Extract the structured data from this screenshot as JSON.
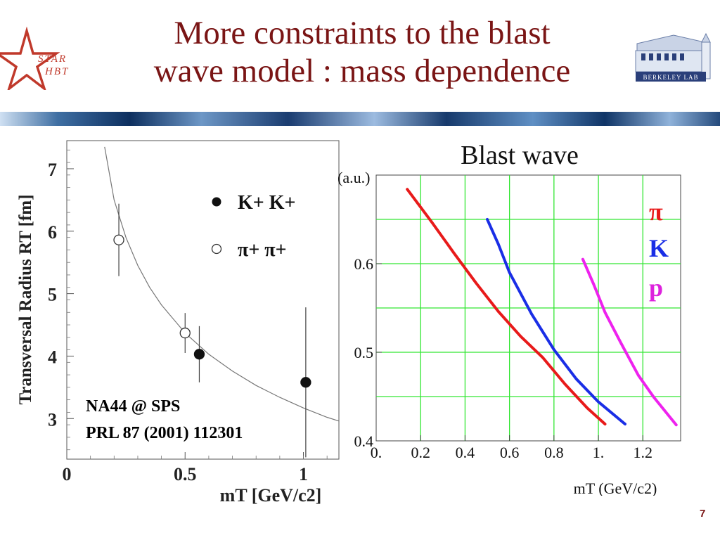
{
  "slide": {
    "title_line1": "More constraints to the blast",
    "title_line2": "wave model : mass dependence",
    "page_number": "7"
  },
  "logos": {
    "star_text_1": "STAR",
    "star_text_2": "HBT",
    "lab_text": "BERKELEY LAB",
    "accent": "#c0392b"
  },
  "chart_data": [
    {
      "type": "scatter",
      "title": "",
      "xlabel": "mT [GeV/c2]",
      "ylabel": "Transversal Radius RT [fm]",
      "xlim": [
        0,
        1.15
      ],
      "ylim": [
        2.35,
        7.45
      ],
      "x_ticks": [
        "0",
        "0.5",
        "1"
      ],
      "x_tick_values": [
        0,
        0.5,
        1
      ],
      "y_ticks": [
        "3",
        "4",
        "5",
        "6",
        "7"
      ],
      "y_tick_values": [
        3,
        4,
        5,
        6,
        7
      ],
      "grid": false,
      "legend_position": "top-right",
      "annotation_lines": [
        "NA44 @ SPS",
        "PRL 87 (2001) 112301"
      ],
      "series": [
        {
          "name": "K+ K+",
          "marker": "filled-circle",
          "points": [
            {
              "x": 0.56,
              "y": 4.03,
              "err": 0.45
            },
            {
              "x": 1.01,
              "y": 3.58,
              "err": 1.2
            }
          ]
        },
        {
          "name": "π+ π+",
          "marker": "open-circle",
          "points": [
            {
              "x": 0.22,
              "y": 5.86,
              "err": 0.58
            },
            {
              "x": 0.5,
              "y": 4.37,
              "err": 0.32
            }
          ]
        },
        {
          "name": "",
          "marker": "line",
          "color": "#777777",
          "x": [
            0.16,
            0.2,
            0.25,
            0.3,
            0.35,
            0.4,
            0.5,
            0.6,
            0.7,
            0.8,
            0.9,
            1.0,
            1.1,
            1.15
          ],
          "y": [
            7.35,
            6.5,
            5.9,
            5.45,
            5.1,
            4.82,
            4.37,
            4.03,
            3.76,
            3.53,
            3.34,
            3.17,
            3.02,
            2.96
          ]
        }
      ]
    },
    {
      "type": "line",
      "title": "Blast wave",
      "xlabel": "mT (GeV/c2)",
      "ylabel": "(a.u.)",
      "xlim": [
        0,
        1.37
      ],
      "ylim": [
        0.4,
        0.7
      ],
      "x_ticks": [
        "0.",
        "0.2",
        "0.4",
        "0.6",
        "0.8",
        "1.",
        "1.2"
      ],
      "x_tick_values": [
        0,
        0.2,
        0.4,
        0.6,
        0.8,
        1.0,
        1.2
      ],
      "y_ticks": [
        "0.4",
        "0.5",
        "0.6"
      ],
      "y_tick_values": [
        0.4,
        0.5,
        0.6
      ],
      "grid": true,
      "grid_color": "#33e633",
      "series": [
        {
          "name": "π",
          "color": "#e81a1a",
          "x": [
            0.14,
            0.25,
            0.35,
            0.45,
            0.55,
            0.65,
            0.75,
            0.85,
            0.95,
            1.03
          ],
          "y": [
            0.684,
            0.647,
            0.612,
            0.578,
            0.546,
            0.518,
            0.494,
            0.464,
            0.437,
            0.419
          ]
        },
        {
          "name": "K",
          "color": "#1a2ee6",
          "x": [
            0.5,
            0.55,
            0.6,
            0.7,
            0.8,
            0.9,
            1.0,
            1.12
          ],
          "y": [
            0.65,
            0.622,
            0.59,
            0.543,
            0.503,
            0.47,
            0.444,
            0.419
          ]
        },
        {
          "name": "p",
          "color": "#ee22ee",
          "x": [
            0.93,
            0.98,
            1.03,
            1.1,
            1.18,
            1.25,
            1.35
          ],
          "y": [
            0.605,
            0.576,
            0.545,
            0.511,
            0.474,
            0.449,
            0.418
          ]
        }
      ]
    }
  ]
}
